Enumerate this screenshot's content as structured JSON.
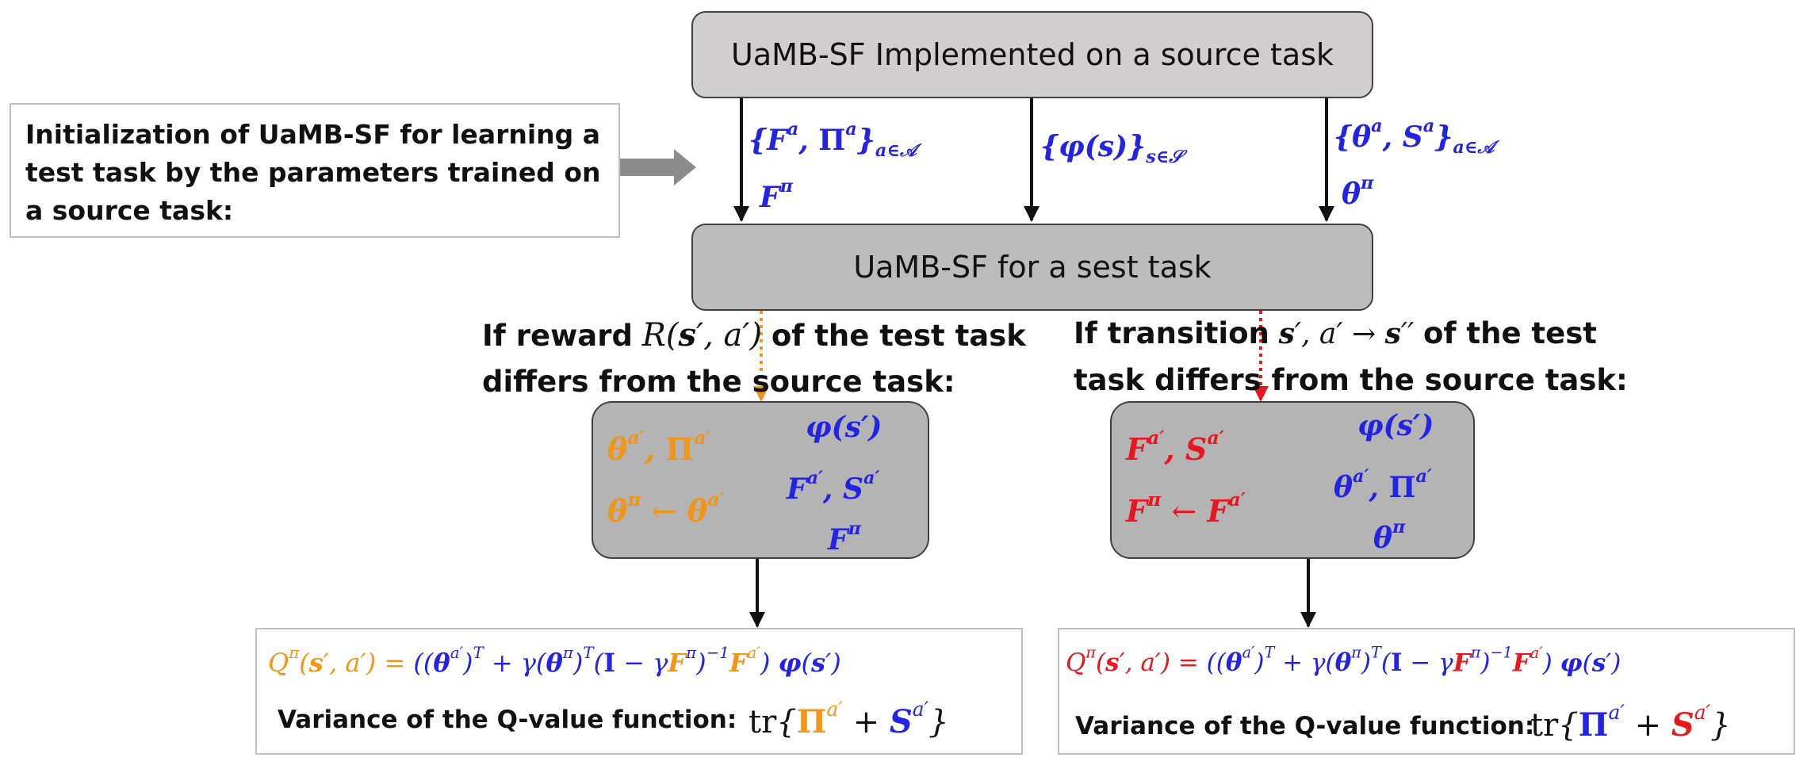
{
  "top_box": {
    "title": "UaMB-SF Implemented on a source task"
  },
  "init_box": {
    "text": "Initialization of UaMB-SF for learning a test task by the parameters trained on a source task:"
  },
  "arrow_labels": {
    "left_line1": "{F^a, Π^a}_{a∈A}",
    "left_line2": "F^π",
    "middle": "{φ(s)}_{s∈S}",
    "right_line1": "{θ^a, S^a}_{a∈A}",
    "right_line2": "θ^π"
  },
  "test_box": {
    "title": "UaMB-SF for a sest task"
  },
  "reward_condition": {
    "line1_prefix": "If reward",
    "math": "R(s′, a′)",
    "line1_suffix": "of the test task",
    "line2": "differs from the source task:"
  },
  "transition_condition": {
    "line1_prefix": "If transition",
    "math": "s′, a′ → s′′",
    "line1_suffix": "of the test",
    "line2": "task differs from the source task:"
  },
  "left_inner_box": {
    "updated_line1": "θ^{a′}, Π^{a′}",
    "updated_line2": "θ^π ← θ^{a′}",
    "reused_line1": "φ(s′)",
    "reused_line2": "F^{a′}, S^{a′}",
    "reused_line3": "F^π"
  },
  "right_inner_box": {
    "updated_line1": "F^{a′}, S^{a′}",
    "updated_line2": "F^π ← F^{a′}",
    "reused_line1": "φ(s′)",
    "reused_line2": "θ^{a′}, Π^{a′}",
    "reused_line3": "θ^π"
  },
  "left_result": {
    "q_formula": "Q^π(s′, a′) = ((θ^{a′})^T + γ(θ^π)^T(I − γF^π)^{−1}F^{a′}) φ(s′)",
    "variance_label": "Variance of the Q-value function:",
    "variance_formula": "tr{Π^{a′} + S^{a′}}"
  },
  "right_result": {
    "q_formula": "Q^π(s′, a′) = ((θ^{a′})^T + γ(θ^π)^T(I − γF^π)^{−1}F^{a′}) φ(s′)",
    "variance_label": "Variance of the Q-value function:",
    "variance_formula": "tr{Π^{a′} + S^{a′}}"
  },
  "colors": {
    "updated_left": "#f39517",
    "updated_right": "#e8161e",
    "reused": "#2323e6"
  }
}
